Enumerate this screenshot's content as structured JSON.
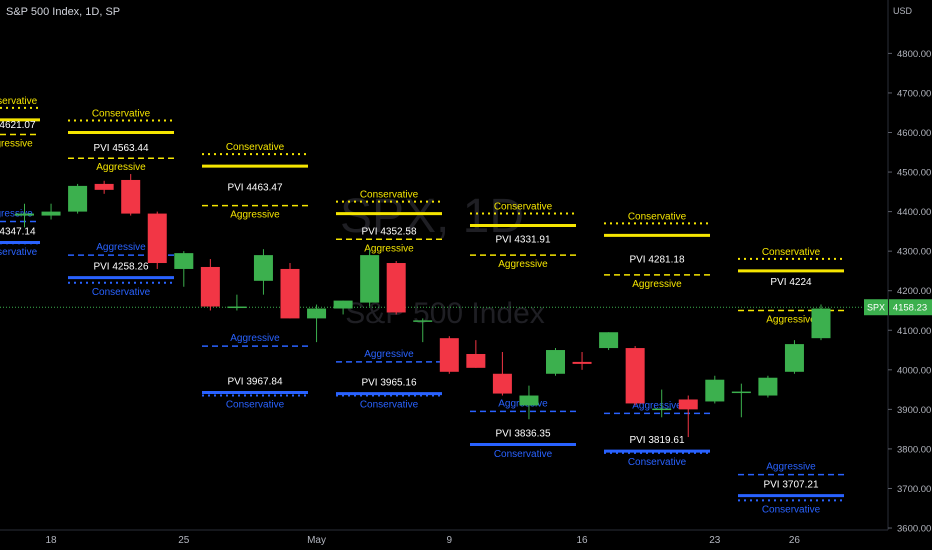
{
  "header": {
    "symbol_title": "S&P 500 Index, 1D, SP",
    "currency": "USD"
  },
  "watermark": {
    "symbol": "SPX, 1D",
    "name": "S&P 500 Index"
  },
  "colors": {
    "background": "#000000",
    "up": "#3cb04e",
    "down": "#f23645",
    "conservative_res": "#f5e500",
    "pvi_support": "#2962ff",
    "text": "#d1d4dc",
    "price_line": "#3cb04e"
  },
  "chart_data": {
    "type": "candlestick",
    "title": "S&P 500 Index, 1D, SP",
    "y_axis": {
      "label": "USD",
      "ticks": [
        4800,
        4700,
        4600,
        4500,
        4400,
        4300,
        4200,
        4100,
        4000,
        3900,
        3800,
        3700,
        3600
      ],
      "range": [
        3595,
        4935
      ]
    },
    "x_axis": {
      "ticks": [
        "18",
        "25",
        "May",
        "9",
        "16",
        "23",
        "26"
      ],
      "tick_bar_index": [
        1,
        6,
        11,
        16,
        21,
        26,
        29
      ]
    },
    "last_price": {
      "label": "SPX",
      "value": 4158.23
    },
    "candles": [
      {
        "o": 4390,
        "h": 4420,
        "l": 4360,
        "c": 4395
      },
      {
        "o": 4390,
        "h": 4420,
        "l": 4380,
        "c": 4400
      },
      {
        "o": 4400,
        "h": 4470,
        "l": 4395,
        "c": 4465
      },
      {
        "o": 4470,
        "h": 4478,
        "l": 4445,
        "c": 4455
      },
      {
        "o": 4480,
        "h": 4495,
        "l": 4390,
        "c": 4395
      },
      {
        "o": 4395,
        "h": 4400,
        "l": 4255,
        "c": 4270
      },
      {
        "o": 4255,
        "h": 4300,
        "l": 4210,
        "c": 4295
      },
      {
        "o": 4260,
        "h": 4280,
        "l": 4150,
        "c": 4160
      },
      {
        "o": 4160,
        "h": 4190,
        "l": 4150,
        "c": 4160
      },
      {
        "o": 4225,
        "h": 4305,
        "l": 4190,
        "c": 4290
      },
      {
        "o": 4255,
        "h": 4270,
        "l": 4130,
        "c": 4130
      },
      {
        "o": 4130,
        "h": 4165,
        "l": 4070,
        "c": 4155
      },
      {
        "o": 4155,
        "h": 4175,
        "l": 4140,
        "c": 4175
      },
      {
        "o": 4170,
        "h": 4305,
        "l": 4160,
        "c": 4290
      },
      {
        "o": 4270,
        "h": 4275,
        "l": 4140,
        "c": 4145
      },
      {
        "o": 4125,
        "h": 4130,
        "l": 4070,
        "c": 4125
      },
      {
        "o": 4080,
        "h": 4085,
        "l": 3990,
        "c": 3995
      },
      {
        "o": 4040,
        "h": 4075,
        "l": 4005,
        "c": 4005
      },
      {
        "o": 3990,
        "h": 4045,
        "l": 3935,
        "c": 3940
      },
      {
        "o": 3910,
        "h": 3960,
        "l": 3875,
        "c": 3935
      },
      {
        "o": 3990,
        "h": 4055,
        "l": 3985,
        "c": 4050
      },
      {
        "o": 4020,
        "h": 4045,
        "l": 4000,
        "c": 4015
      },
      {
        "o": 4055,
        "h": 4095,
        "l": 4050,
        "c": 4095
      },
      {
        "o": 4055,
        "h": 4060,
        "l": 3910,
        "c": 3915
      },
      {
        "o": 3900,
        "h": 3950,
        "l": 3880,
        "c": 3902
      },
      {
        "o": 3925,
        "h": 3935,
        "l": 3830,
        "c": 3900
      },
      {
        "o": 3920,
        "h": 3985,
        "l": 3915,
        "c": 3975
      },
      {
        "o": 3945,
        "h": 3965,
        "l": 3880,
        "c": 3945
      },
      {
        "o": 3935,
        "h": 3985,
        "l": 3930,
        "c": 3980
      },
      {
        "o": 3995,
        "h": 4075,
        "l": 3990,
        "c": 4065
      },
      {
        "o": 4080,
        "h": 4165,
        "l": 4075,
        "c": 4155
      }
    ],
    "weekly_levels": [
      {
        "pvi_res": 4621.07,
        "cons_res": 4632,
        "agg_res": 4595,
        "pvi_sup": 4347.14,
        "agg_sup": 4375,
        "cons_sup": 4320,
        "res_label_shown": true,
        "res_label": "Conservative",
        "res_agg_label": "Aggressive",
        "sup_label": "Aggressive",
        "sup_cons_label": "Conservative"
      },
      {
        "pvi_res": 4563.44,
        "cons_res": 4600,
        "agg_res": 4535,
        "pvi_sup": 4258.26,
        "agg_sup": 4290,
        "cons_sup": 4220,
        "res_label": "Conservative",
        "res_agg_label": "Aggressive",
        "sup_label": "Aggressive",
        "sup_cons_label": "Conservative"
      },
      {
        "pvi_res": 4463.47,
        "cons_res": 4515,
        "agg_res": 4415,
        "pvi_sup": 3967.84,
        "agg_sup": 4060,
        "cons_sup": 3935,
        "res_label": "Conservative",
        "res_agg_label": "Aggressive",
        "sup_label": "Aggressive",
        "sup_cons_label": "Conservative"
      },
      {
        "pvi_res": 4352.58,
        "cons_res": 4395,
        "agg_res": 4330,
        "pvi_sup": 3965.16,
        "agg_sup": 4020,
        "cons_sup": 3935,
        "res_label": "Conservative",
        "res_agg_label": "Aggressive",
        "sup_label": "Aggressive",
        "sup_cons_label": "Conservative"
      },
      {
        "pvi_res": 4331.91,
        "cons_res": 4365,
        "agg_res": 4290,
        "pvi_sup": 3836.35,
        "agg_sup": 3895,
        "cons_sup": 3810,
        "res_label": "Conservative",
        "res_agg_label": "Aggressive",
        "sup_label": "Aggressive",
        "sup_cons_label": "Conservative"
      },
      {
        "pvi_res": 4281.18,
        "cons_res": 4340,
        "agg_res": 4240,
        "pvi_sup": 3819.61,
        "agg_sup": 3890,
        "cons_sup": 3790,
        "res_label": "Conservative",
        "res_agg_label": "Aggressive",
        "sup_label": "Aggressive",
        "sup_cons_label": "Conservative"
      },
      {
        "pvi_res": 4224,
        "cons_res": 4250,
        "agg_res": 4150,
        "pvi_sup": 3707.21,
        "agg_sup": 3735,
        "cons_sup": 3670,
        "res_label": "Conservative",
        "res_agg_label": "Aggressive",
        "sup_label": "Aggressive",
        "sup_cons_label": "Conservative"
      }
    ],
    "pvi_prefix": "PVI"
  }
}
